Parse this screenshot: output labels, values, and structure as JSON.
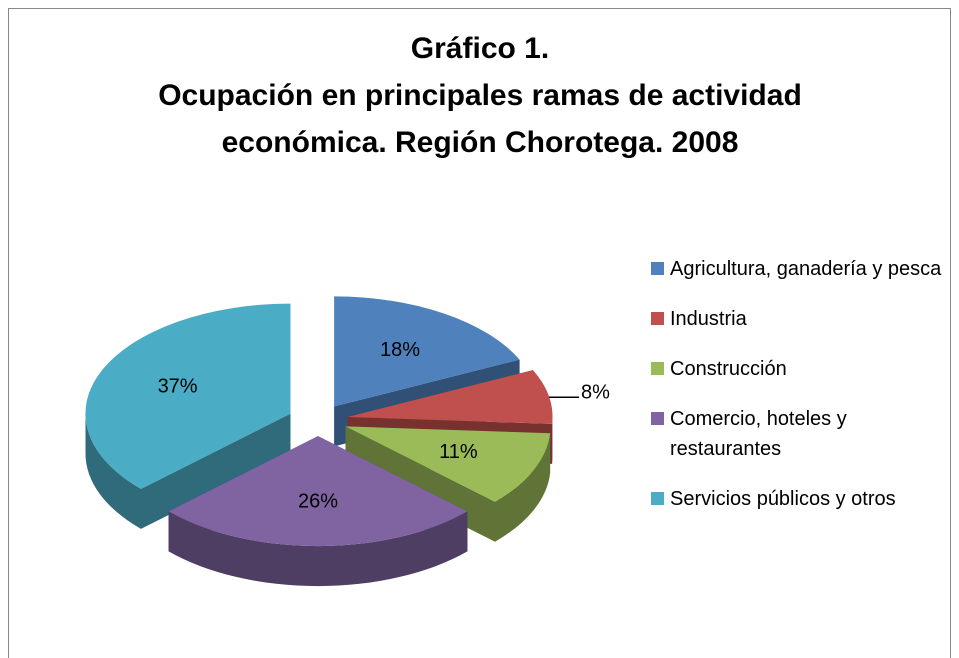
{
  "chart_data": {
    "type": "pie3d",
    "title": [
      "Gráfico 1.",
      "Ocupación en principales ramas de actividad",
      "económica. Región Chorotega. 2008"
    ],
    "categories": [
      "Agricultura, ganadería y pesca",
      "Industria",
      "Construcción",
      "Comercio, hoteles y restaurantes",
      "Servicios públicos y otros"
    ],
    "values": [
      18,
      8,
      11,
      26,
      37
    ],
    "value_labels": [
      "18%",
      "8%",
      "11%",
      "26%",
      "37%"
    ],
    "colors": [
      "#4f81bd",
      "#c0504d",
      "#9bbb59",
      "#8064a2",
      "#4bacc6"
    ],
    "legend": "right"
  }
}
